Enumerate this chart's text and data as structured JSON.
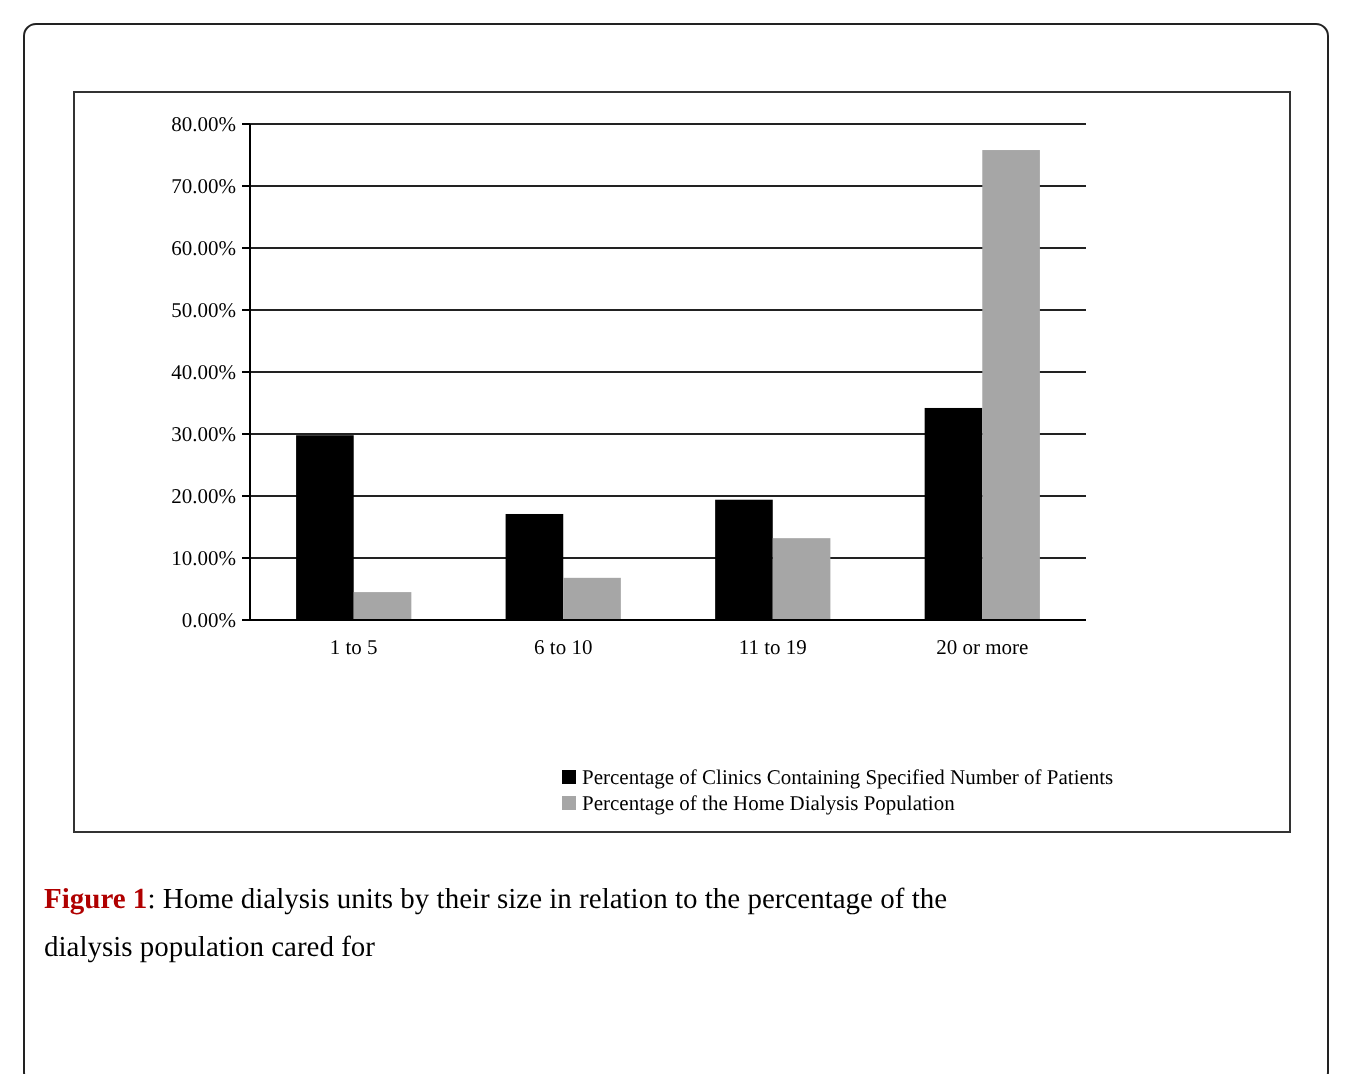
{
  "chart_data": {
    "type": "bar",
    "categories": [
      "1 to 5",
      "6 to 10",
      "11 to 19",
      "20 or more"
    ],
    "series": [
      {
        "name": "Percentage of Clinics Containing Specified Number of Patients",
        "color": "#000000",
        "values": [
          29.8,
          17.1,
          19.4,
          34.2
        ]
      },
      {
        "name": "Percentage of the Home Dialysis Population",
        "color": "#a6a6a6",
        "values": [
          4.5,
          6.8,
          13.2,
          75.8
        ]
      }
    ],
    "ylim": [
      0,
      80
    ],
    "yticks": [
      {
        "value": 0,
        "label": "0.00%"
      },
      {
        "value": 10,
        "label": "10.00%"
      },
      {
        "value": 20,
        "label": "20.00%"
      },
      {
        "value": 30,
        "label": "30.00%"
      },
      {
        "value": 40,
        "label": "40.00%"
      },
      {
        "value": 50,
        "label": "50.00%"
      },
      {
        "value": 60,
        "label": "60.00%"
      },
      {
        "value": 70,
        "label": "70.00%"
      },
      {
        "value": 80,
        "label": "80.00%"
      }
    ],
    "grid": "y",
    "legend": "bottom",
    "annotations": [
      "Figure 1: Home dialysis units by their size in relation to the percentage of the dialysis population cared for"
    ]
  }
}
